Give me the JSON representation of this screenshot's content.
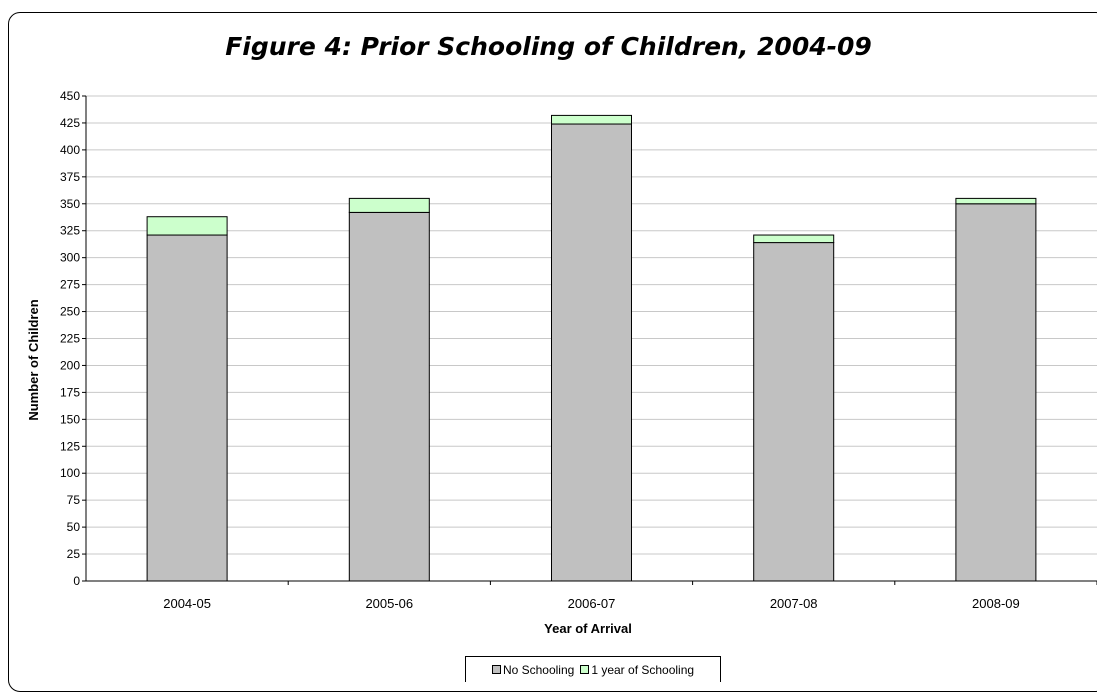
{
  "chart_data": {
    "type": "bar",
    "stacked": true,
    "title": "Figure 4: Prior Schooling of Children, 2004-09",
    "xlabel": "Year of Arrival",
    "ylabel": "Number of Children",
    "categories": [
      "2004-05",
      "2005-06",
      "2006-07",
      "2007-08",
      "2008-09"
    ],
    "series": [
      {
        "name": "No Schooling",
        "values": [
          321,
          342,
          424,
          314,
          350
        ],
        "color": "#c0c0c0"
      },
      {
        "name": "1 year of Schooling",
        "values": [
          17,
          13,
          8,
          7,
          5
        ],
        "color": "#ccffcc"
      }
    ],
    "ylim": [
      0,
      450
    ],
    "yticks": [
      "0",
      "25",
      "50",
      "75",
      "100",
      "125",
      "150",
      "175",
      "200",
      "225",
      "250",
      "275",
      "300",
      "325",
      "350",
      "375",
      "400",
      "425",
      "450"
    ],
    "grid": true,
    "legend": "bottom"
  }
}
